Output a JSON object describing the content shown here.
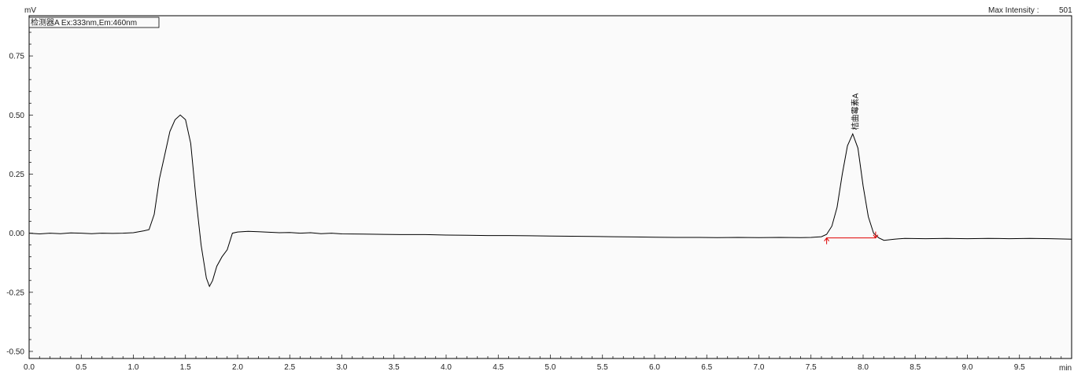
{
  "chart_data": {
    "type": "line",
    "y_unit_label": "mV",
    "x_unit_label": "min",
    "detector_label": "检测器A Ex:333nm,Em:460nm",
    "max_intensity": {
      "label": "Max Intensity :",
      "value": "501"
    },
    "xlim": [
      0,
      10
    ],
    "ylim": [
      -0.53,
      0.92
    ],
    "x_ticks": [
      0.0,
      0.5,
      1.0,
      1.5,
      2.0,
      2.5,
      3.0,
      3.5,
      4.0,
      4.5,
      5.0,
      5.5,
      6.0,
      6.5,
      7.0,
      7.5,
      8.0,
      8.5,
      9.0,
      9.5
    ],
    "x_tick_labels": [
      "0.0",
      "0.5",
      "1.0",
      "1.5",
      "2.0",
      "2.5",
      "3.0",
      "3.5",
      "4.0",
      "4.5",
      "5.0",
      "5.5",
      "6.0",
      "6.5",
      "7.0",
      "7.5",
      "8.0",
      "8.5",
      "9.0",
      "9.5"
    ],
    "y_ticks": [
      0.75,
      0.5,
      0.25,
      0.0,
      -0.25,
      -0.5
    ],
    "y_tick_labels": [
      "0.75",
      "0.50",
      "0.25",
      "0.00",
      "-0.25",
      "-0.50"
    ],
    "series": [
      {
        "color": "#000000",
        "x": [
          0.0,
          0.1,
          0.2,
          0.3,
          0.4,
          0.5,
          0.6,
          0.7,
          0.8,
          0.9,
          1.0,
          1.1,
          1.15,
          1.2,
          1.25,
          1.3,
          1.35,
          1.4,
          1.45,
          1.5,
          1.55,
          1.6,
          1.65,
          1.7,
          1.73,
          1.76,
          1.8,
          1.85,
          1.9,
          1.95,
          2.0,
          2.1,
          2.2,
          2.3,
          2.4,
          2.5,
          2.6,
          2.7,
          2.8,
          2.9,
          3.0,
          3.2,
          3.4,
          3.6,
          3.8,
          4.0,
          4.2,
          4.4,
          4.6,
          4.8,
          5.0,
          5.2,
          5.4,
          5.6,
          5.8,
          6.0,
          6.2,
          6.4,
          6.6,
          6.8,
          7.0,
          7.2,
          7.4,
          7.5,
          7.6,
          7.65,
          7.7,
          7.75,
          7.8,
          7.85,
          7.9,
          7.95,
          8.0,
          8.05,
          8.1,
          8.15,
          8.2,
          8.3,
          8.4,
          8.6,
          8.8,
          9.0,
          9.2,
          9.4,
          9.6,
          9.8,
          10.0
        ],
        "y": [
          0.0,
          -0.003,
          0.0,
          -0.002,
          0.001,
          0.0,
          -0.002,
          0.0,
          -0.001,
          0.0,
          0.002,
          0.01,
          0.015,
          0.08,
          0.23,
          0.33,
          0.43,
          0.48,
          0.5,
          0.48,
          0.38,
          0.15,
          -0.05,
          -0.19,
          -0.225,
          -0.2,
          -0.14,
          -0.1,
          -0.07,
          0.0,
          0.005,
          0.008,
          0.006,
          0.004,
          0.002,
          0.003,
          0.0,
          0.002,
          -0.002,
          0.0,
          -0.003,
          -0.004,
          -0.005,
          -0.006,
          -0.006,
          -0.008,
          -0.009,
          -0.01,
          -0.01,
          -0.011,
          -0.012,
          -0.013,
          -0.014,
          -0.015,
          -0.016,
          -0.017,
          -0.018,
          -0.018,
          -0.019,
          -0.018,
          -0.019,
          -0.018,
          -0.019,
          -0.018,
          -0.015,
          -0.005,
          0.03,
          0.11,
          0.25,
          0.37,
          0.42,
          0.36,
          0.2,
          0.07,
          0.0,
          -0.02,
          -0.03,
          -0.025,
          -0.022,
          -0.023,
          -0.022,
          -0.023,
          -0.022,
          -0.023,
          -0.022,
          -0.023,
          -0.025
        ]
      }
    ],
    "peak": {
      "name": "桔曲霉素A",
      "apex_x": 7.92,
      "apex_y": 0.42,
      "baseline_start": {
        "x": 7.65,
        "y": -0.02
      },
      "baseline_end": {
        "x": 8.12,
        "y": -0.02
      },
      "baseline_color": "#e00000"
    }
  }
}
